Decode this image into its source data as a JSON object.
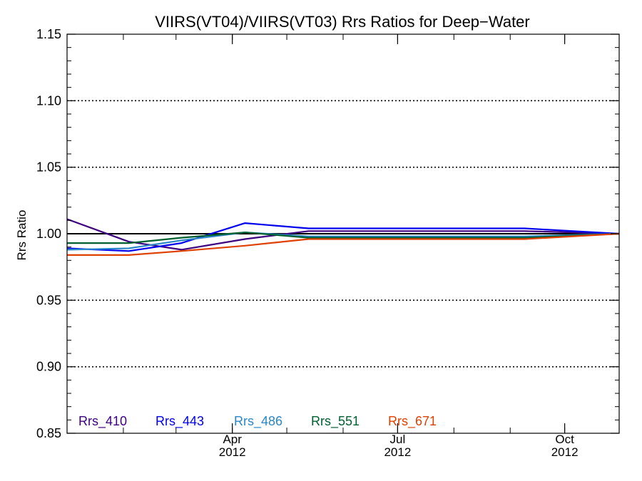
{
  "chart_data": {
    "type": "line",
    "title": "VIIRS(VT04)/VIIRS(VT03)  Rrs Ratios for Deep−Water",
    "ylabel": "Rrs Ratio",
    "xlabel": "",
    "xlim": [
      "2012-01-01",
      "2012-10-31"
    ],
    "ylim": [
      0.85,
      1.15
    ],
    "y_ticks": [
      "0.85",
      "0.90",
      "0.95",
      "1.00",
      "1.05",
      "1.10",
      "1.15"
    ],
    "x_ticks": [
      {
        "date": "2012-04-01",
        "month": "Apr",
        "year": "2012"
      },
      {
        "date": "2012-07-01",
        "month": "Jul",
        "year": "2012"
      },
      {
        "date": "2012-10-01",
        "month": "Oct",
        "year": "2012"
      }
    ],
    "dotted_gridlines": [
      0.9,
      0.95,
      1.05,
      1.1
    ],
    "reference_line": 1.0,
    "series": [
      {
        "name": "Rrs_410",
        "color": "#3d0080",
        "x": [
          "2012-01-01",
          "2012-02-04",
          "2012-03-04",
          "2012-04-08",
          "2012-05-13",
          "2012-06-10",
          "2012-07-08",
          "2012-08-12",
          "2012-09-09",
          "2012-10-31"
        ],
        "y": [
          1.011,
          0.994,
          0.988,
          0.996,
          1.002,
          1.002,
          1.002,
          1.002,
          1.002,
          1.0
        ]
      },
      {
        "name": "Rrs_443",
        "color": "#0000ee",
        "x": [
          "2012-01-01",
          "2012-02-04",
          "2012-03-04",
          "2012-04-08",
          "2012-05-13",
          "2012-06-10",
          "2012-07-08",
          "2012-08-12",
          "2012-09-09",
          "2012-10-31"
        ],
        "y": [
          0.989,
          0.987,
          0.993,
          1.008,
          1.004,
          1.004,
          1.004,
          1.004,
          1.004,
          1.0
        ]
      },
      {
        "name": "Rrs_486",
        "color": "#2b87c8",
        "x": [
          "2012-01-01",
          "2012-02-04",
          "2012-03-04",
          "2012-04-08",
          "2012-05-13",
          "2012-06-10",
          "2012-07-08",
          "2012-08-12",
          "2012-09-09",
          "2012-10-31"
        ],
        "y": [
          0.988,
          0.989,
          0.995,
          1.001,
          0.998,
          0.998,
          0.998,
          0.998,
          0.998,
          1.0
        ]
      },
      {
        "name": "Rrs_551",
        "color": "#006030",
        "x": [
          "2012-01-01",
          "2012-02-04",
          "2012-03-04",
          "2012-04-08",
          "2012-05-13",
          "2012-06-10",
          "2012-07-08",
          "2012-08-12",
          "2012-09-09",
          "2012-10-31"
        ],
        "y": [
          0.993,
          0.993,
          0.997,
          1.001,
          0.997,
          0.997,
          0.997,
          0.997,
          0.997,
          1.0
        ]
      },
      {
        "name": "Rrs_671",
        "color": "#e04000",
        "x": [
          "2012-01-01",
          "2012-02-04",
          "2012-03-04",
          "2012-04-08",
          "2012-05-13",
          "2012-06-10",
          "2012-07-08",
          "2012-08-12",
          "2012-09-09",
          "2012-10-31"
        ],
        "y": [
          0.984,
          0.984,
          0.987,
          0.991,
          0.996,
          0.996,
          0.996,
          0.996,
          0.996,
          1.0
        ]
      }
    ]
  }
}
